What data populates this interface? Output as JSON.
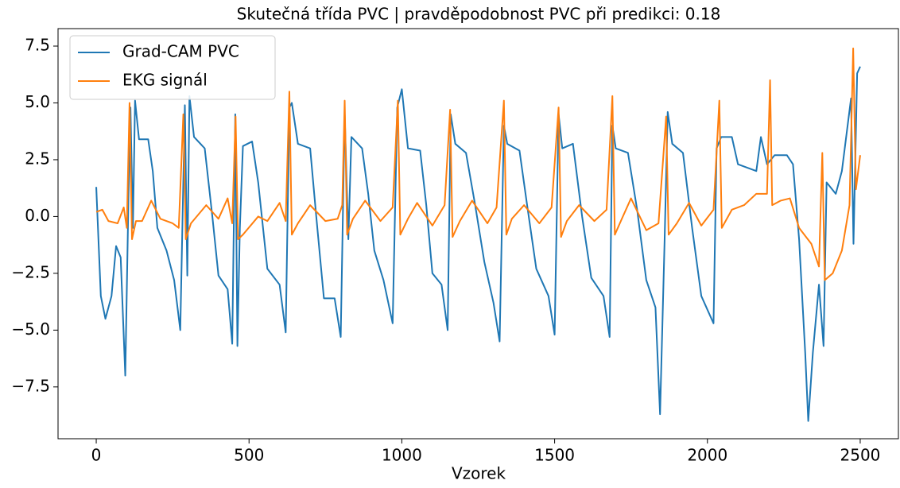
{
  "chart_data": {
    "type": "line",
    "title": "Skutečná třída PVC | pravděpodobnost PVC při predikci: 0.18",
    "x_label": "Vzorek",
    "xlim": [
      -125,
      2625
    ],
    "ylim": [
      -9.78,
      8.27
    ],
    "xticks": [
      0,
      500,
      1000,
      1500,
      2000,
      2500
    ],
    "yticks": [
      {
        "value": -7.5,
        "label": "−7.5"
      },
      {
        "value": -5,
        "label": "−5.0"
      },
      {
        "value": -2.5,
        "label": "−2.5"
      },
      {
        "value": 0,
        "label": "0.0"
      },
      2.5,
      {
        "value": 5,
        "label": "5.0"
      },
      7.5
    ],
    "grid": false,
    "legend": "upper left",
    "series": [
      {
        "name": "Grad-CAM PVC",
        "color": "#1f77b4",
        "x": [
          0,
          15,
          30,
          50,
          65,
          80,
          95,
          105,
          112,
          120,
          127,
          140,
          170,
          185,
          200,
          230,
          255,
          275,
          290,
          298,
          305,
          320,
          355,
          380,
          400,
          430,
          445,
          455,
          462,
          470,
          480,
          510,
          530,
          560,
          600,
          620,
          632,
          640,
          660,
          700,
          720,
          745,
          780,
          800,
          813,
          825,
          835,
          870,
          890,
          910,
          940,
          970,
          985,
          1000,
          1020,
          1060,
          1080,
          1100,
          1130,
          1150,
          1160,
          1175,
          1210,
          1240,
          1270,
          1300,
          1320,
          1334,
          1345,
          1385,
          1410,
          1440,
          1480,
          1500,
          1513,
          1525,
          1560,
          1590,
          1620,
          1660,
          1680,
          1689,
          1700,
          1740,
          1770,
          1800,
          1830,
          1845,
          1860,
          1870,
          1885,
          1920,
          1950,
          1980,
          2020,
          2030,
          2045,
          2080,
          2100,
          2160,
          2175,
          2195,
          2220,
          2260,
          2280,
          2300,
          2320,
          2330,
          2345,
          2365,
          2380,
          2390,
          2420,
          2440,
          2470,
          2478,
          2490,
          2500
        ],
        "values": [
          1.3,
          -3.5,
          -4.5,
          -3.5,
          -1.3,
          -1.8,
          -7.0,
          0.5,
          4.8,
          -0.5,
          5.1,
          3.4,
          3.4,
          2.0,
          -0.5,
          -1.5,
          -2.8,
          -5.0,
          4.9,
          -2.6,
          5.3,
          3.5,
          3.0,
          0.0,
          -2.6,
          -3.2,
          -5.6,
          4.5,
          -5.7,
          -0.5,
          3.1,
          3.3,
          1.5,
          -2.3,
          -3.0,
          -5.1,
          4.8,
          5.0,
          3.2,
          3.0,
          0.0,
          -3.6,
          -3.6,
          -5.3,
          4.5,
          -1.0,
          3.5,
          3.0,
          1.0,
          -1.5,
          -2.8,
          -4.7,
          4.8,
          5.6,
          3.0,
          2.9,
          0.5,
          -2.5,
          -3.0,
          -5.0,
          4.5,
          3.2,
          2.8,
          0.5,
          -2.0,
          -3.8,
          -5.5,
          4.0,
          3.2,
          2.9,
          0.5,
          -2.3,
          -3.5,
          -5.2,
          4.5,
          3.0,
          3.2,
          0.0,
          -2.7,
          -3.5,
          -5.3,
          4.0,
          3.0,
          2.8,
          0.3,
          -2.8,
          -4.0,
          -8.7,
          -1.0,
          4.6,
          3.2,
          2.8,
          -0.5,
          -3.5,
          -4.7,
          3.0,
          3.5,
          3.5,
          2.3,
          2.0,
          3.5,
          2.3,
          2.7,
          2.7,
          2.3,
          -1.0,
          -6.0,
          -9.0,
          -6.0,
          -3.0,
          -5.7,
          1.5,
          1.0,
          2.0,
          5.2,
          -1.2,
          6.3,
          6.6
        ]
      },
      {
        "name": "EKG signál",
        "color": "#ff7f0e",
        "x": [
          0,
          20,
          40,
          70,
          90,
          100,
          109,
          117,
          130,
          150,
          180,
          210,
          250,
          270,
          285,
          293,
          310,
          360,
          400,
          430,
          445,
          456,
          464,
          480,
          530,
          560,
          600,
          620,
          632,
          640,
          660,
          700,
          750,
          790,
          805,
          813,
          821,
          840,
          880,
          930,
          970,
          987,
          995,
          1020,
          1050,
          1100,
          1140,
          1158,
          1166,
          1190,
          1230,
          1280,
          1310,
          1334,
          1342,
          1360,
          1400,
          1450,
          1490,
          1513,
          1521,
          1540,
          1580,
          1630,
          1670,
          1689,
          1697,
          1720,
          1750,
          1800,
          1840,
          1865,
          1873,
          1900,
          1940,
          1980,
          2020,
          2039,
          2047,
          2080,
          2120,
          2160,
          2195,
          2205,
          2212,
          2240,
          2270,
          2300,
          2340,
          2365,
          2376,
          2384,
          2410,
          2440,
          2465,
          2477,
          2486,
          2500
        ],
        "values": [
          0.2,
          0.3,
          -0.2,
          -0.3,
          0.4,
          -0.5,
          5.0,
          -1.0,
          -0.2,
          -0.2,
          0.7,
          -0.1,
          -0.3,
          -0.5,
          4.5,
          -1.0,
          -0.3,
          0.5,
          -0.1,
          0.8,
          -0.3,
          4.4,
          -1.0,
          -0.8,
          0.0,
          -0.2,
          0.6,
          -0.2,
          5.5,
          -0.8,
          -0.3,
          0.5,
          -0.2,
          -0.1,
          0.5,
          5.1,
          -0.8,
          -0.1,
          0.7,
          -0.2,
          0.4,
          5.1,
          -0.8,
          -0.1,
          0.6,
          -0.4,
          0.5,
          4.7,
          -0.9,
          -0.2,
          0.7,
          -0.3,
          0.4,
          5.1,
          -0.8,
          -0.1,
          0.5,
          -0.3,
          0.4,
          4.8,
          -0.9,
          -0.2,
          0.5,
          -0.2,
          0.3,
          5.3,
          -0.8,
          -0.1,
          0.8,
          -0.6,
          -0.3,
          4.4,
          -0.8,
          -0.3,
          0.6,
          -0.4,
          0.3,
          5.1,
          -0.5,
          0.3,
          0.5,
          1.0,
          1.0,
          6.0,
          0.5,
          0.7,
          0.8,
          -0.5,
          -1.2,
          -2.2,
          2.8,
          -2.8,
          -2.5,
          -1.5,
          0.5,
          7.4,
          1.2,
          2.7
        ]
      }
    ]
  }
}
